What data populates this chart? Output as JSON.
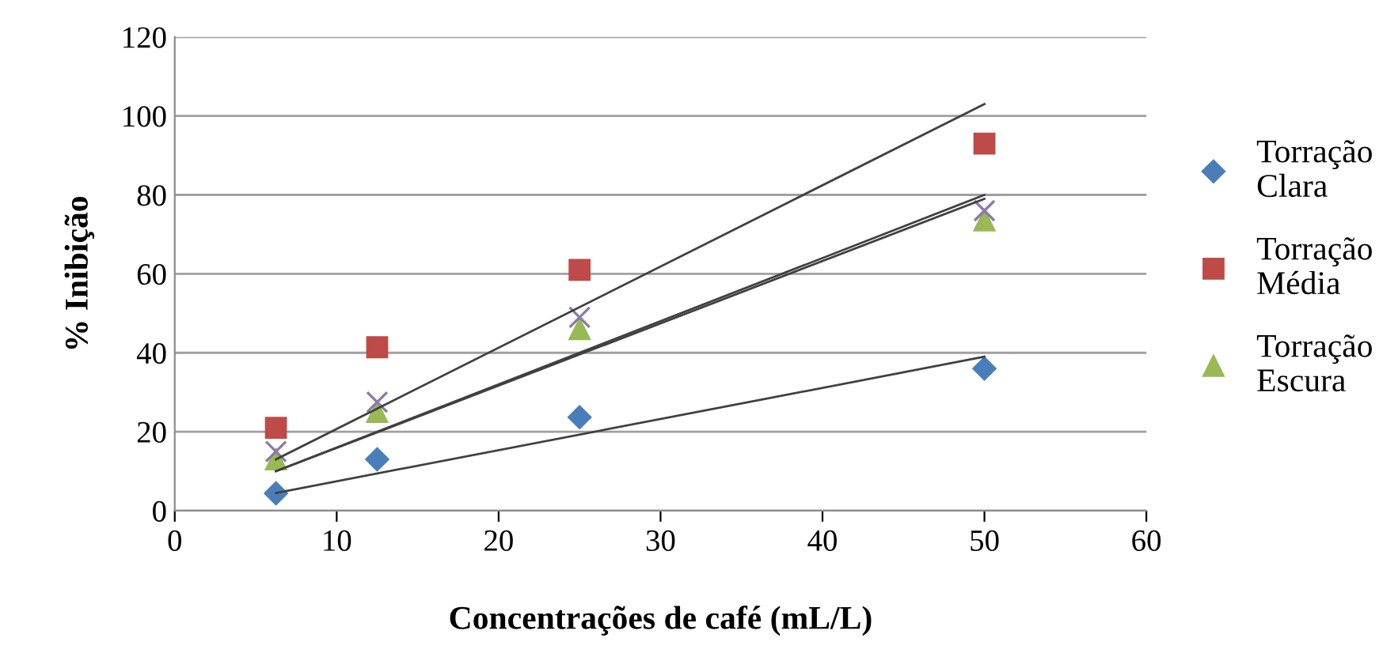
{
  "chart_data": {
    "type": "scatter",
    "xlabel": "Concentrações de café (mL/L)",
    "ylabel": "% Inibição",
    "xlim": [
      0,
      60
    ],
    "xticks": [
      0,
      10,
      20,
      30,
      40,
      50,
      60
    ],
    "ylim": [
      0,
      120
    ],
    "yticks": [
      0,
      20,
      40,
      60,
      80,
      100,
      120
    ],
    "grid": "y",
    "legend": "right",
    "series": [
      {
        "name": "Torração\nClara",
        "color": "#4a7ebb",
        "marker": "diamond",
        "x": [
          6.25,
          12.5,
          25,
          50
        ],
        "values": [
          4.4,
          13,
          23.7,
          36
        ]
      },
      {
        "name": "Torração\nMédia",
        "color": "#be4b48",
        "marker": "square",
        "x": [
          6.25,
          12.5,
          25,
          50
        ],
        "values": [
          21,
          41.4,
          61,
          93
        ]
      },
      {
        "name": "Torração\nEscura",
        "color": "#98b954",
        "marker": "triangle",
        "x": [
          6.25,
          12.5,
          25,
          50
        ],
        "values": [
          13,
          25,
          46,
          73.5
        ]
      },
      {
        "color": "#8a7aa8",
        "marker": "cross",
        "x": [
          6.25,
          12.5,
          25,
          50
        ],
        "values": [
          15,
          27.5,
          49,
          76
        ]
      },
      {
        "type": "line",
        "color": "#404040",
        "marker": "none",
        "x": [
          6.25,
          50
        ],
        "values": [
          4.5,
          39
        ]
      },
      {
        "type": "line",
        "color": "#404040",
        "marker": "none",
        "x": [
          6.25,
          50
        ],
        "values": [
          13,
          103
        ]
      },
      {
        "type": "line",
        "color": "#404040",
        "marker": "none",
        "x": [
          6.25,
          50
        ],
        "values": [
          10,
          79
        ]
      },
      {
        "type": "line",
        "color": "#404040",
        "marker": "none",
        "x": [
          6.25,
          50
        ],
        "values": [
          10,
          80
        ]
      }
    ]
  }
}
